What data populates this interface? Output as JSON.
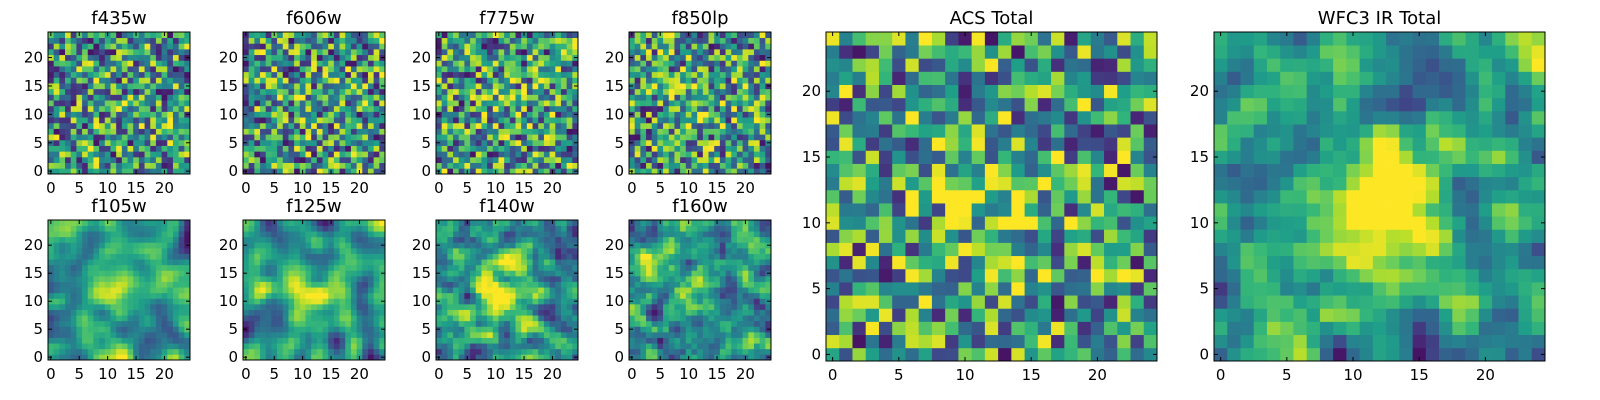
{
  "chart_data": [
    {
      "type": "heatmap",
      "title": "f435w",
      "x": {
        "ticks": [
          0,
          5,
          10,
          15,
          20
        ],
        "range": [
          0,
          25
        ]
      },
      "y": {
        "ticks": [
          0,
          5,
          10,
          15,
          20
        ],
        "range": [
          0,
          25
        ]
      },
      "grid": false,
      "colormap": "viridis",
      "seed": 11,
      "blob": 0.05,
      "smooth": 0
    },
    {
      "type": "heatmap",
      "title": "f606w",
      "x": {
        "ticks": [
          0,
          5,
          10,
          15,
          20
        ],
        "range": [
          0,
          25
        ]
      },
      "y": {
        "ticks": [
          0,
          5,
          10,
          15,
          20
        ],
        "range": [
          0,
          25
        ]
      },
      "grid": false,
      "colormap": "viridis",
      "seed": 23,
      "blob": 0.05,
      "smooth": 0
    },
    {
      "type": "heatmap",
      "title": "f775w",
      "x": {
        "ticks": [
          0,
          5,
          10,
          15,
          20
        ],
        "range": [
          0,
          25
        ]
      },
      "y": {
        "ticks": [
          0,
          5,
          10,
          15,
          20
        ],
        "range": [
          0,
          25
        ]
      },
      "grid": false,
      "colormap": "viridis",
      "seed": 37,
      "blob": 0.1,
      "smooth": 0
    },
    {
      "type": "heatmap",
      "title": "f850lp",
      "x": {
        "ticks": [
          0,
          5,
          10,
          15,
          20
        ],
        "range": [
          0,
          25
        ]
      },
      "y": {
        "ticks": [
          0,
          5,
          10,
          15,
          20
        ],
        "range": [
          0,
          25
        ]
      },
      "grid": false,
      "colormap": "viridis",
      "seed": 41,
      "blob": 0.15,
      "smooth": 0
    },
    {
      "type": "heatmap",
      "title": "f105w",
      "x": {
        "ticks": [
          0,
          5,
          10,
          15,
          20
        ],
        "range": [
          0,
          25
        ]
      },
      "y": {
        "ticks": [
          0,
          5,
          10,
          15,
          20
        ],
        "range": [
          0,
          25
        ]
      },
      "grid": false,
      "colormap": "viridis",
      "seed": 53,
      "blob": 0.2,
      "smooth": 2
    },
    {
      "type": "heatmap",
      "title": "f125w",
      "x": {
        "ticks": [
          0,
          5,
          10,
          15,
          20
        ],
        "range": [
          0,
          25
        ]
      },
      "y": {
        "ticks": [
          0,
          5,
          10,
          15,
          20
        ],
        "range": [
          0,
          25
        ]
      },
      "grid": false,
      "colormap": "viridis",
      "seed": 67,
      "blob": 0.2,
      "smooth": 2
    },
    {
      "type": "heatmap",
      "title": "f140w",
      "x": {
        "ticks": [
          0,
          5,
          10,
          15,
          20
        ],
        "range": [
          0,
          25
        ]
      },
      "y": {
        "ticks": [
          0,
          5,
          10,
          15,
          20
        ],
        "range": [
          0,
          25
        ]
      },
      "grid": false,
      "colormap": "viridis",
      "seed": 71,
      "blob": 0.25,
      "smooth": 1
    },
    {
      "type": "heatmap",
      "title": "f160w",
      "x": {
        "ticks": [
          0,
          5,
          10,
          15,
          20
        ],
        "range": [
          0,
          25
        ]
      },
      "y": {
        "ticks": [
          0,
          5,
          10,
          15,
          20
        ],
        "range": [
          0,
          25
        ]
      },
      "grid": false,
      "colormap": "viridis",
      "seed": 83,
      "blob": 0.25,
      "smooth": 1
    },
    {
      "type": "heatmap",
      "title": "ACS Total",
      "x": {
        "ticks": [
          0,
          5,
          10,
          15,
          20
        ],
        "range": [
          0,
          25
        ]
      },
      "y": {
        "ticks": [
          0,
          5,
          10,
          15,
          20
        ],
        "range": [
          0,
          25
        ]
      },
      "grid": false,
      "colormap": "viridis",
      "seed": 97,
      "blob": 0.25,
      "smooth": 0
    },
    {
      "type": "heatmap",
      "title": "WFC3 IR Total",
      "x": {
        "ticks": [
          0,
          5,
          10,
          15,
          20
        ],
        "range": [
          0,
          25
        ]
      },
      "y": {
        "ticks": [
          0,
          5,
          10,
          15,
          20
        ],
        "range": [
          0,
          25
        ]
      },
      "grid": false,
      "colormap": "viridis",
      "seed": 101,
      "blob": 0.55,
      "smooth": 1
    }
  ]
}
